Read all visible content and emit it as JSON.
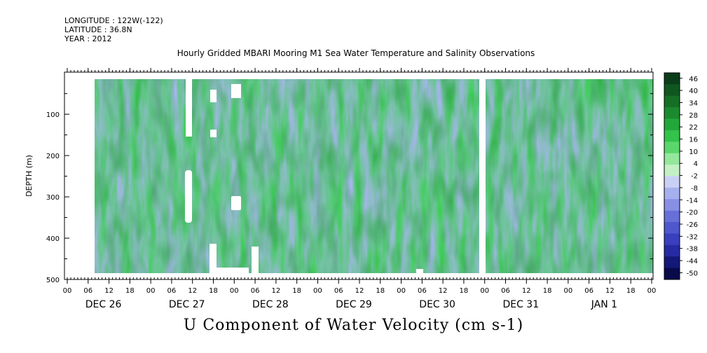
{
  "header": {
    "longitude": "LONGITUDE : 122W(-122)",
    "latitude": "LATITUDE : 36.8N",
    "year": "YEAR : 2012"
  },
  "chart_data": {
    "type": "heatmap",
    "title": "Hourly Gridded MBARI Mooring M1 Sea Water Temperature and Salinity Observations",
    "xlabel": "U Component of Water Velocity (cm s-1)",
    "ylabel": "DEPTH (m)",
    "y_axis": {
      "range": [
        500,
        15
      ],
      "reversed": true,
      "ticks": [
        100,
        200,
        300,
        400,
        500
      ]
    },
    "x_axis": {
      "hour_ticks": [
        "00",
        "06",
        "12",
        "18",
        "00",
        "06",
        "12",
        "18",
        "00",
        "06",
        "12",
        "18",
        "00",
        "06",
        "12",
        "18",
        "00",
        "06",
        "12",
        "18",
        "00",
        "06",
        "12",
        "18",
        "00",
        "06",
        "12",
        "18",
        "00"
      ],
      "day_labels": [
        "DEC 26",
        "DEC 27",
        "DEC 28",
        "DEC 29",
        "DEC 30",
        "DEC 31",
        "JAN  1"
      ]
    },
    "colorbar": {
      "labels": [
        "46",
        "40",
        "34",
        "28",
        "22",
        "16",
        "10",
        "4",
        "-2",
        "-8",
        "-14",
        "-20",
        "-26",
        "-32",
        "-38",
        "-44",
        "-50"
      ],
      "colors": [
        "#0b3d1a",
        "#10571f",
        "#157026",
        "#1b8a2f",
        "#22a83a",
        "#33c24a",
        "#5ad66a",
        "#93e89c",
        "#c4f0c6",
        "#c9d0f6",
        "#a7b0ee",
        "#8790e4",
        "#6770d8",
        "#4e57cc",
        "#3a3fbd",
        "#262aa3",
        "#141878",
        "#080a4a"
      ]
    }
  }
}
